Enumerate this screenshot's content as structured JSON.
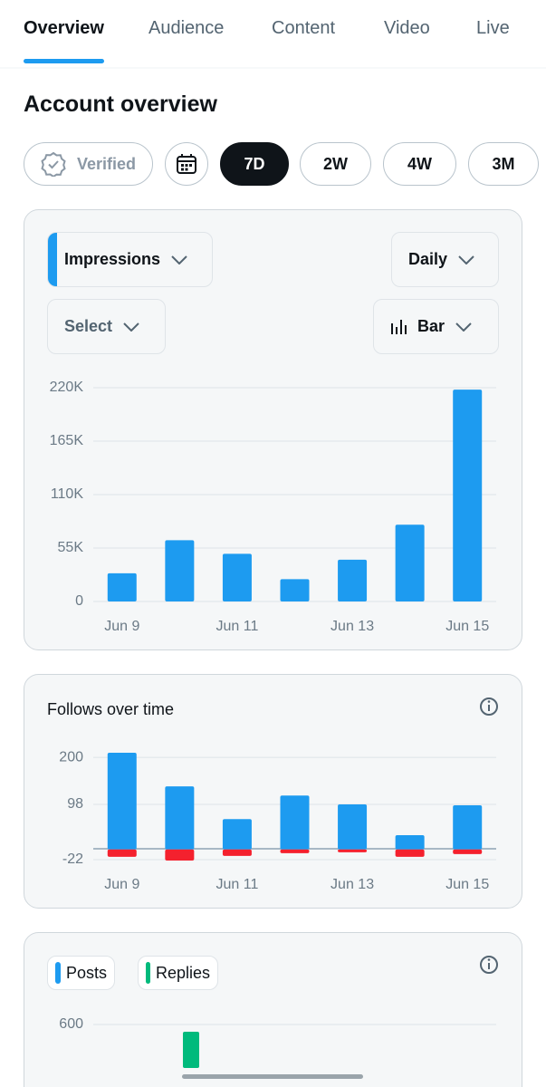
{
  "tabs": [
    "Overview",
    "Audience",
    "Content",
    "Video",
    "Live"
  ],
  "header": {
    "title": "Account overview"
  },
  "filters": {
    "verified": "Verified",
    "ranges": [
      "7D",
      "2W",
      "4W",
      "3M"
    ]
  },
  "controls": {
    "metric": "Impressions",
    "interval": "Daily",
    "compare": "Select",
    "chart_style": "Bar"
  },
  "chart_data": [
    {
      "type": "bar",
      "categories": [
        "Jun 9",
        null,
        "Jun 11",
        null,
        "Jun 13",
        null,
        "Jun 15"
      ],
      "values": [
        29000,
        63000,
        49000,
        23000,
        43000,
        79000,
        218000
      ],
      "color": "#1d9bf0",
      "ylim": [
        0,
        220000
      ],
      "yticks": [
        0,
        {
          "value": 55000,
          "label": "55K"
        },
        {
          "value": 110000,
          "label": "110K"
        },
        {
          "value": 165000,
          "label": "165K"
        },
        {
          "value": 220000,
          "label": "220K"
        }
      ],
      "grid": true
    },
    {
      "type": "bar",
      "title": "Follows over time",
      "categories": [
        "Jun 9",
        null,
        "Jun 11",
        null,
        "Jun 13",
        null,
        "Jun 15"
      ],
      "series": [
        {
          "color": "#1d9bf0",
          "values": [
            210,
            137,
            66,
            117,
            98,
            31,
            96
          ]
        },
        {
          "color": "#f4212e",
          "values": [
            -16,
            -24,
            -14,
            -8,
            -6,
            -16,
            -10
          ]
        }
      ],
      "ylim": [
        -24,
        210
      ],
      "yticks": [
        200,
        98,
        -22
      ],
      "grid": true
    },
    {
      "type": "bar",
      "series": [
        {
          "name": "Posts",
          "color": "#1d9bf0"
        },
        {
          "name": "Replies",
          "color": "#00ba7c"
        }
      ],
      "yticks": [
        600
      ],
      "grid": true
    }
  ]
}
